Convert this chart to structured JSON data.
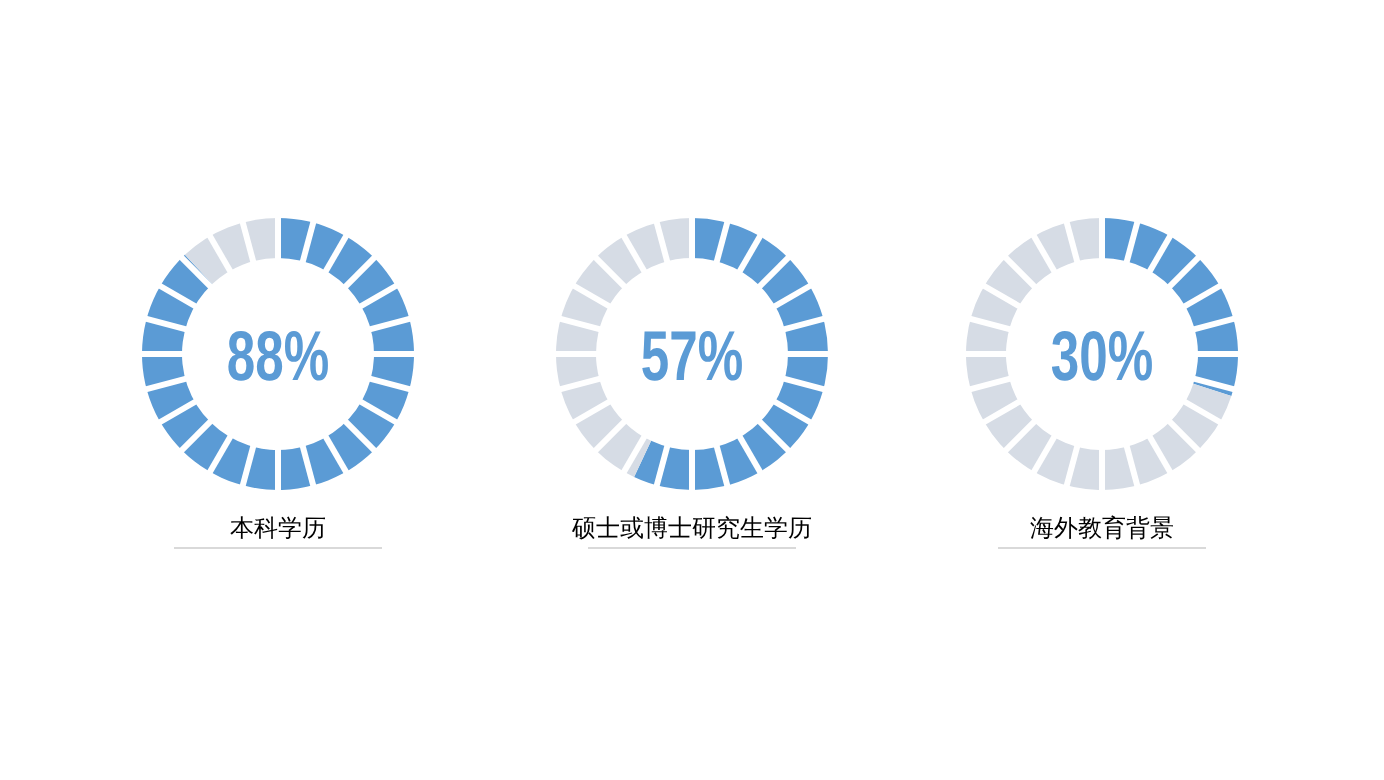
{
  "chart_data": [
    {
      "type": "donut",
      "title": "本科学历",
      "categories": [
        null,
        null
      ],
      "values": [
        88,
        12
      ],
      "colors": [
        "#5b9bd5",
        "#d6dce5"
      ],
      "annotations": [
        "88%"
      ]
    },
    {
      "type": "donut",
      "title": "硕士或博士研究生学历",
      "categories": [
        null,
        null
      ],
      "values": [
        57,
        43
      ],
      "colors": [
        "#5b9bd5",
        "#d6dce5"
      ],
      "annotations": [
        "57%"
      ]
    },
    {
      "type": "donut",
      "title": "海外教育背景",
      "categories": [
        null,
        null
      ],
      "values": [
        30,
        70
      ],
      "colors": [
        "#5b9bd5",
        "#d6dce5"
      ],
      "annotations": [
        "30%"
      ]
    }
  ]
}
